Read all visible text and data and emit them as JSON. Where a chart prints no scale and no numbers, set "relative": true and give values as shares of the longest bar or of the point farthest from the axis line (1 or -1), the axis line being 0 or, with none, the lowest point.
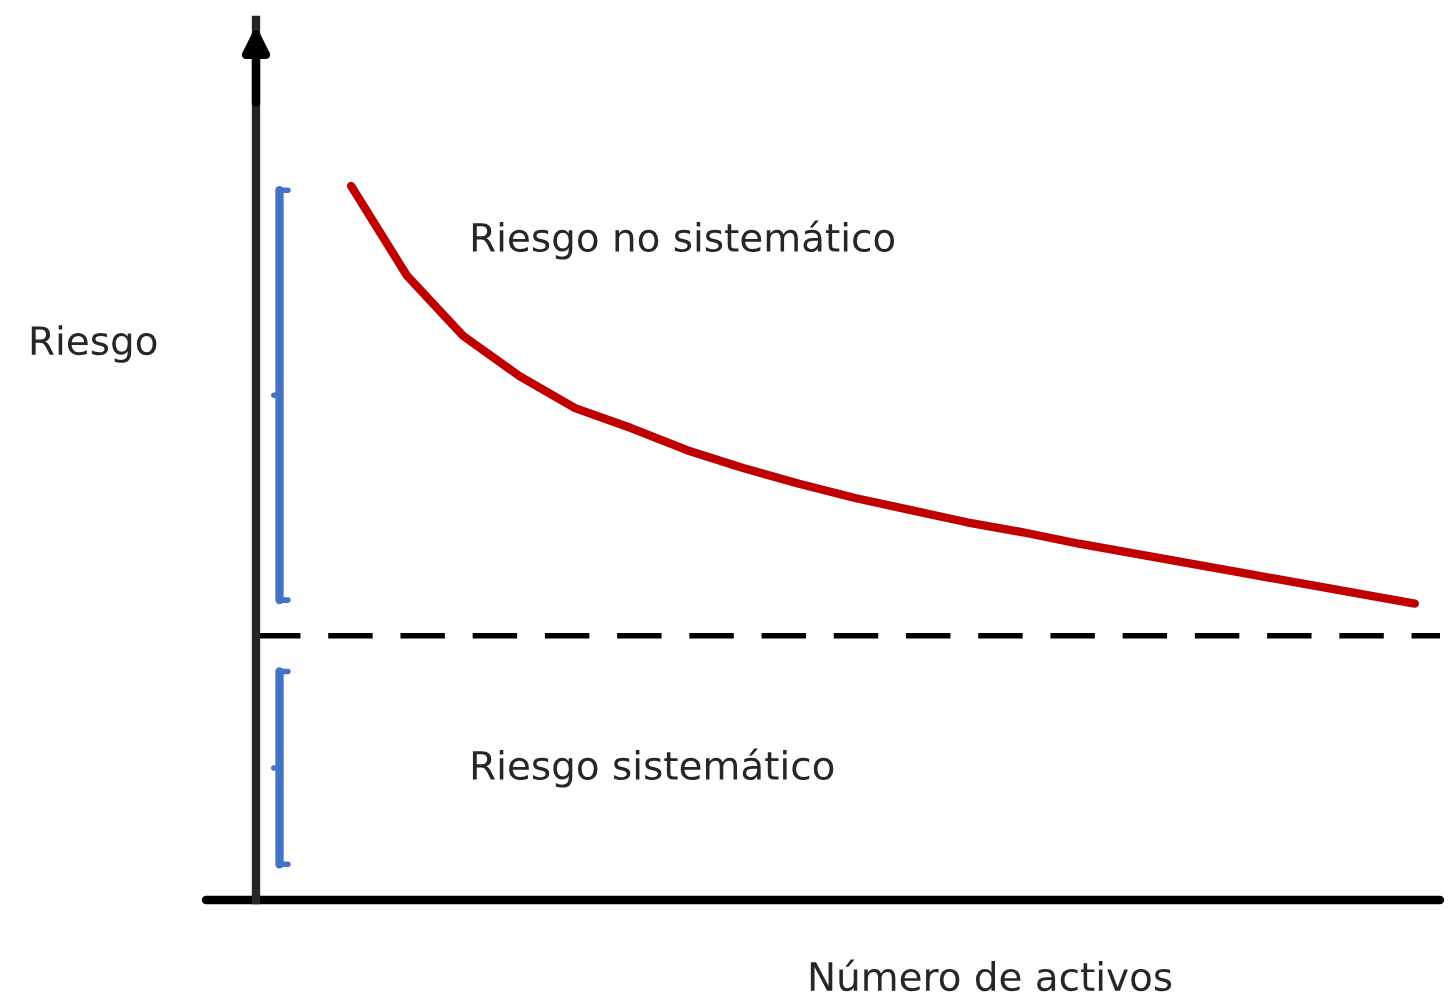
{
  "chart_data": {
    "type": "line",
    "relative": true,
    "xlabel": "Número de activos",
    "ylabel": "Riesgo",
    "categories": [
      null,
      null,
      null,
      null,
      null,
      null,
      null,
      null,
      null,
      null,
      null,
      null,
      null,
      null,
      null,
      null,
      null,
      null,
      null,
      null
    ],
    "series": [
      {
        "color": "#c00000",
        "values": [
          1.0,
          0.874,
          0.79,
          0.734,
          0.689,
          0.661,
          0.63,
          0.605,
          0.583,
          0.563,
          0.546,
          0.529,
          0.515,
          0.499,
          0.485,
          0.471,
          0.457,
          0.443,
          0.429,
          0.415
        ]
      }
    ],
    "ref_lines": [
      {
        "axis": "y",
        "value": 0.37,
        "color": "#000000",
        "line_style": "dashed"
      }
    ],
    "annotations": [
      "Riesgo no sistemático",
      "Riesgo sistemático"
    ],
    "marker": "none",
    "line_style": "solid",
    "legend": false
  }
}
